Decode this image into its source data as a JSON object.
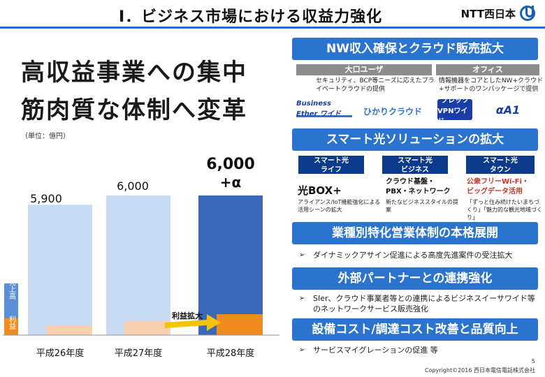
{
  "header": {
    "title": "Ⅰ．ビジネス市場における収益力強化",
    "logo_text": "NTT西日本"
  },
  "left": {
    "headline_1": "高収益事業への集中",
    "headline_2": "筋肉質な体制へ変革",
    "unit": "（単位：億円）"
  },
  "chart_data": {
    "type": "bar",
    "categories": [
      "平成26年度",
      "平成27年度",
      "平成28年度"
    ],
    "series": [
      {
        "name": "売上高",
        "values": [
          5900,
          6000,
          6000
        ]
      },
      {
        "name": "利益",
        "values": [
          null,
          null,
          null
        ]
      }
    ],
    "data_labels": [
      "5,900",
      "6,000",
      "6,000\n+α"
    ],
    "legend": [
      "売上高",
      "利益"
    ],
    "annotation": "利益拡大",
    "colors": {
      "sales_light": "#c9daf3",
      "sales_dark": "#3b67b9",
      "profit_light": "#f9cfae",
      "profit_dark": "#f08c1f",
      "arrow": "#f5c400"
    }
  },
  "right": {
    "banner_1": "NW収入確保とクラウド販売拡大",
    "col1_title": "大口ユーザ",
    "col1_desc": "セキュリティ、BCP等ニーズに応えたプライベートクラウドの提供",
    "col2_title": "オフィス",
    "col2_desc": "情報機器をコアとしたNW+クラウド+サポートのワンパッケージで提供",
    "logo_1": "Business Ether ワイド",
    "logo_2": "ひかりクラウド",
    "logo_3_top": "フレッツ",
    "logo_3_bottom": "VPNワイド",
    "logo_4": "αA1",
    "banner_2": "スマート光ソリューションの拡大",
    "tab_1": "スマート光\nライフ",
    "tab_2": "スマート光\nビジネス",
    "tab_3": "スマート光\nタウン",
    "life_product": "光BOX+",
    "life_note": "アライアンス/IoT機能強化による活用シーンの拡大",
    "business_product": "クラウド基盤・\nPBX・ネットワーク",
    "business_note": "新たなビジネススタイルの提案",
    "town_product": "公衆フリーWi-Fi・\nビッグデータ活用",
    "town_note": "「ずっと住み続けたいまちづくり」「魅力的な観光地域づくり」",
    "banner_3": "業種別特化営業体制の本格展開",
    "bullet_3": "ダイナミックアサイン促進による高度先進案件の受注拡大",
    "banner_4": "外部パートナーとの連携強化",
    "bullet_4": "SIer、クラウド事業者等との連携によるビジネスイーサワイド等のネットワークサービス販売強化",
    "banner_5": "設備コスト/調達コスト改善と品質向上",
    "bullet_5": "サービスマイグレーションの促進 等"
  },
  "footer": {
    "page": "5",
    "copyright": "Copyright©2016 西日本電信電話株式会社"
  }
}
